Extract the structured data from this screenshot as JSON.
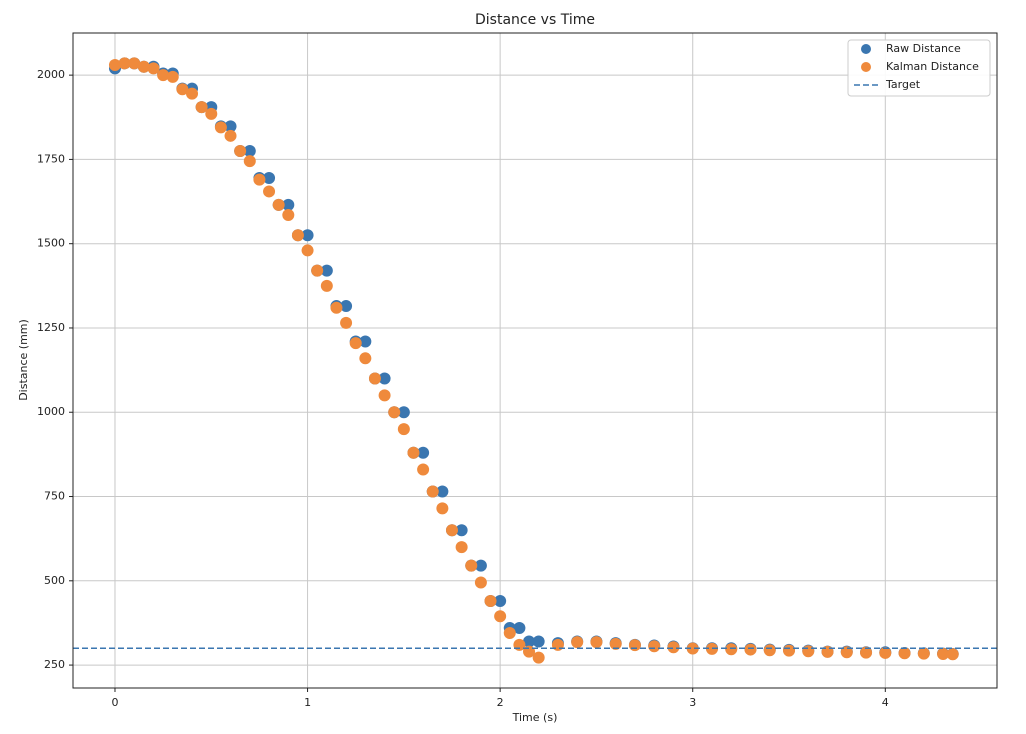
{
  "chart_data": {
    "type": "scatter",
    "title": "Distance vs Time",
    "x_label": "Time (s)",
    "y_label": "Distance (mm)",
    "x": [
      0,
      0.05,
      0.1,
      0.15,
      0.2,
      0.25,
      0.3,
      0.35,
      0.4,
      0.45,
      0.5,
      0.55,
      0.6,
      0.65,
      0.7,
      0.75,
      0.8,
      0.85,
      0.9,
      0.95,
      1.0,
      1.05,
      1.1,
      1.15,
      1.2,
      1.25,
      1.3,
      1.35,
      1.4,
      1.45,
      1.5,
      1.55,
      1.6,
      1.65,
      1.7,
      1.75,
      1.8,
      1.85,
      1.9,
      1.95,
      2.0,
      2.05,
      2.1,
      2.15,
      2.2,
      2.3,
      2.4,
      2.5,
      2.6,
      2.7,
      2.8,
      2.9,
      3.0,
      3.1,
      3.2,
      3.3,
      3.4,
      3.5,
      3.6,
      3.7,
      3.8,
      3.9,
      4.0,
      4.1,
      4.2,
      4.3,
      4.35
    ],
    "series": [
      {
        "name": "Raw Distance",
        "color": "#3a76b0",
        "values": [
          2020,
          2035,
          2035,
          2025,
          2025,
          2005,
          2005,
          1960,
          1960,
          1905,
          1905,
          1848,
          1848,
          1775,
          1775,
          1695,
          1695,
          1615,
          1615,
          1525,
          1525,
          1420,
          1420,
          1315,
          1315,
          1210,
          1210,
          1100,
          1100,
          1000,
          1000,
          880,
          880,
          765,
          765,
          650,
          650,
          545,
          545,
          440,
          440,
          360,
          360,
          320,
          320,
          315,
          320,
          320,
          315,
          310,
          308,
          305,
          300,
          300,
          300,
          298,
          296,
          295,
          293,
          290,
          290,
          288,
          288,
          286,
          285,
          284,
          283
        ]
      },
      {
        "name": "Kalman Distance",
        "color": "#ef8a3c",
        "values": [
          2030,
          2035,
          2035,
          2025,
          2020,
          2000,
          1995,
          1958,
          1945,
          1905,
          1885,
          1845,
          1820,
          1775,
          1745,
          1690,
          1655,
          1615,
          1585,
          1525,
          1480,
          1420,
          1375,
          1310,
          1265,
          1205,
          1160,
          1100,
          1050,
          1000,
          950,
          880,
          830,
          765,
          715,
          650,
          600,
          545,
          495,
          440,
          395,
          345,
          310,
          290,
          272,
          310,
          318,
          318,
          313,
          309,
          306,
          303,
          299,
          298,
          297,
          296,
          294,
          293,
          291,
          289,
          288,
          287,
          286,
          285,
          284,
          283,
          282
        ]
      }
    ],
    "target": {
      "name": "Target",
      "value": 300,
      "color": "#3a76b0"
    },
    "xlim": [
      -0.218,
      4.58
    ],
    "ylim": [
      182,
      2125
    ],
    "xticks": [
      0,
      1,
      2,
      3,
      4
    ],
    "yticks": [
      250,
      500,
      750,
      1000,
      1250,
      1500,
      1750,
      2000
    ],
    "grid": true,
    "legend": "upper right"
  }
}
